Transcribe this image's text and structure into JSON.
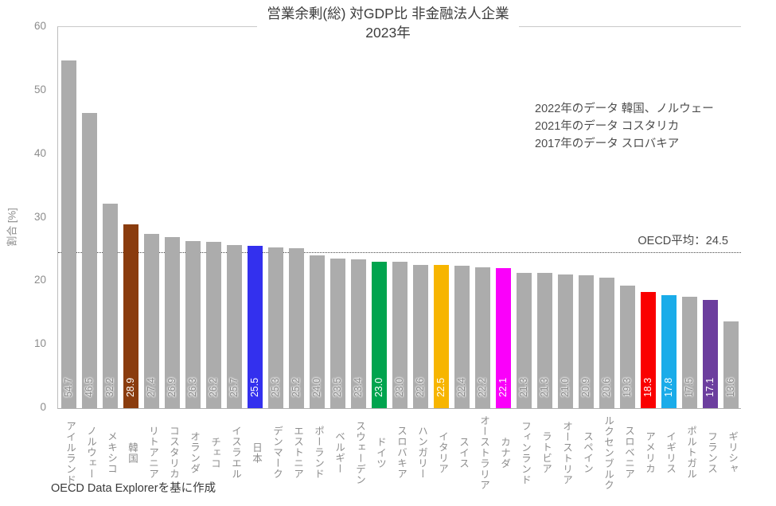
{
  "chart_data": {
    "type": "bar",
    "title_line1": "営業余剰(総) 対GDP比 非金融法人企業",
    "title_line2": "2023年",
    "title": "営業余剰(総) 対GDP比 非金融法人企業 2023年",
    "ylabel": "割合 [%]",
    "xlabel": "",
    "ylim": [
      0,
      60
    ],
    "yticks": [
      0,
      10,
      20,
      30,
      40,
      50,
      60
    ],
    "grid": false,
    "legend": "none",
    "categories": [
      "アイルランド",
      "ノルウェー",
      "メキシコ",
      "韓国",
      "リトアニア",
      "コスタリカ",
      "オランダ",
      "チェコ",
      "イスラエル",
      "日本",
      "デンマーク",
      "エストニア",
      "ポーランド",
      "ベルギー",
      "スウェーデン",
      "ドイツ",
      "スロバキア",
      "ハンガリー",
      "イタリア",
      "スイス",
      "オーストラリア",
      "カナダ",
      "フィンランド",
      "ラトビア",
      "オーストリア",
      "スペイン",
      "ルクセンブルク",
      "スロベニア",
      "アメリカ",
      "イギリス",
      "ポルトガル",
      "フランス",
      "ギリシャ"
    ],
    "values": [
      54.7,
      46.5,
      32.2,
      28.9,
      27.4,
      26.9,
      26.3,
      26.2,
      25.7,
      25.5,
      25.3,
      25.2,
      24.0,
      23.5,
      23.4,
      23.0,
      23.0,
      22.6,
      22.5,
      22.4,
      22.2,
      22.1,
      21.3,
      21.3,
      21.0,
      20.9,
      20.6,
      19.3,
      18.3,
      17.8,
      17.5,
      17.1,
      13.6
    ],
    "default_bar_color": "#ACACAC",
    "highlight_colors": {
      "韓国": "#8A3C0E",
      "日本": "#3330EE",
      "ドイツ": "#00A44E",
      "イタリア": "#F7B500",
      "カナダ": "#FA00FA",
      "アメリカ": "#FA0000",
      "イギリス": "#1AACE9",
      "フランス": "#6C3E9E"
    },
    "reference_line": {
      "value": 24.5,
      "label": "OECD平均：24.5",
      "style": "dotted"
    },
    "footnotes": [
      "2022年のデータ 韓国、ノルウェー",
      "2021年のデータ コスタリカ",
      "2017年のデータ スロバキア"
    ],
    "source": "OECD Data Explorerを基に作成"
  }
}
